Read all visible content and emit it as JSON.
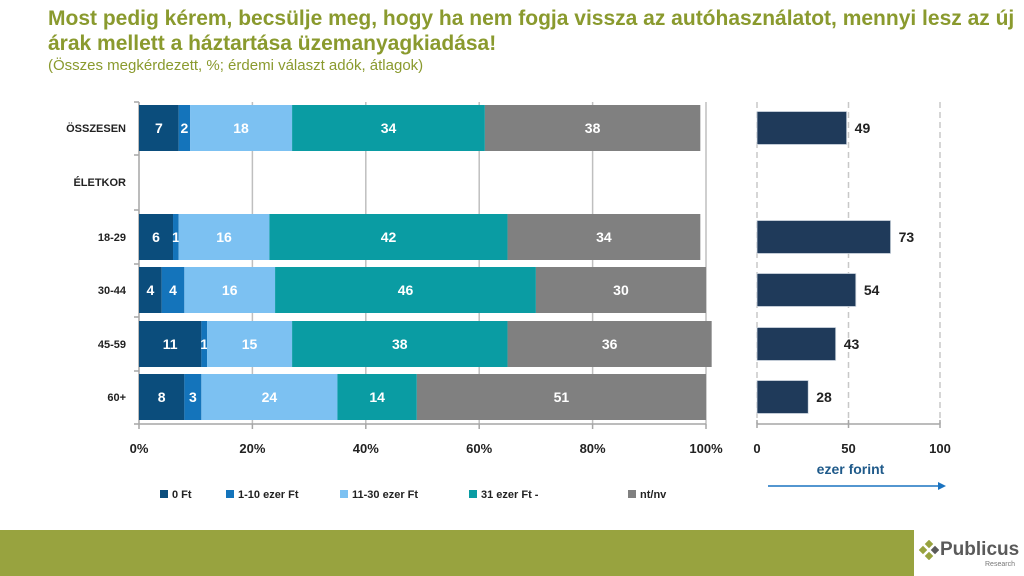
{
  "header": {
    "title": "Most pedig kérem, becsülje meg, hogy ha nem fogja vissza az autóhasználatot, mennyi lesz az új árak mellett a háztartása üzemanyagkiadása!",
    "subtitle": "(Összes megkérdezett, %; érdemi választ adók, átlagok)"
  },
  "footer": {
    "logo_name": "Publicus",
    "logo_sub": "Research"
  },
  "chart_data": [
    {
      "type": "bar",
      "stacked": true,
      "orientation": "horizontal",
      "categories": [
        "ÖSSZESEN",
        "ÉLETKOR",
        "18-29",
        "30-44",
        "45-59",
        "60+"
      ],
      "series": [
        {
          "name": "0 Ft",
          "color": "#0b4d7c",
          "values": [
            7,
            null,
            6,
            4,
            11,
            8
          ]
        },
        {
          "name": "1-10 ezer Ft",
          "color": "#1474bb",
          "values": [
            2,
            null,
            1,
            4,
            1,
            3
          ]
        },
        {
          "name": "11-30 ezer Ft",
          "color": "#7cc1f2",
          "values": [
            18,
            null,
            16,
            16,
            15,
            24
          ]
        },
        {
          "name": "31 ezer Ft -",
          "color": "#0a9ca3",
          "values": [
            34,
            null,
            42,
            46,
            38,
            14
          ]
        },
        {
          "name": "nt/nv",
          "color": "#808080",
          "values": [
            38,
            null,
            34,
            30,
            36,
            51
          ]
        }
      ],
      "xlim": [
        0,
        100
      ],
      "xticks": [
        "0%",
        "20%",
        "40%",
        "60%",
        "80%",
        "100%"
      ],
      "grid": true,
      "legend": "bottom"
    },
    {
      "type": "bar",
      "orientation": "horizontal",
      "categories": [
        "ÖSSZESEN",
        "ÉLETKOR",
        "18-29",
        "30-44",
        "45-59",
        "60+"
      ],
      "values": [
        49,
        null,
        73,
        54,
        43,
        28
      ],
      "color": "#1f3a5a",
      "xlim": [
        0,
        100
      ],
      "xticks": [
        "0",
        "50",
        "100"
      ],
      "xlabel": "ezer forint",
      "grid": "dashed"
    }
  ]
}
